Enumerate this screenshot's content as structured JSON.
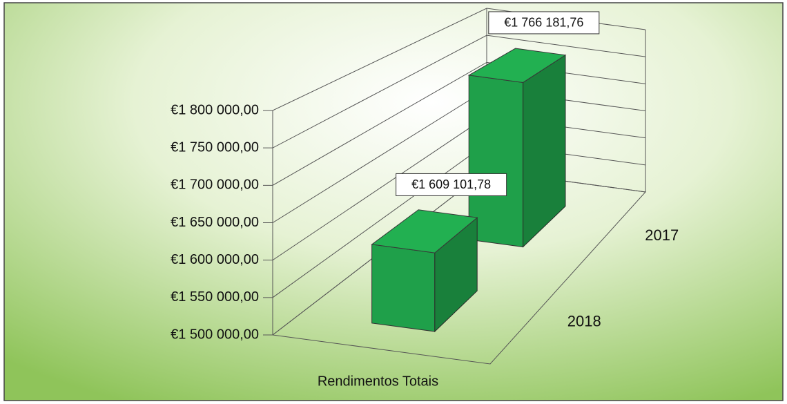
{
  "chart_data": {
    "type": "bar3d",
    "categories": [
      "Rendimentos Totais"
    ],
    "series": [
      {
        "name": "2018",
        "color": "#1fa04a",
        "values": [
          1609101.78
        ],
        "value_labels": [
          "€1 609 101,78"
        ]
      },
      {
        "name": "2017",
        "color": "#1fa04a",
        "values": [
          1766181.76
        ],
        "value_labels": [
          "€1 766 181,76"
        ]
      }
    ],
    "ylim": [
      1500000,
      1800000
    ],
    "yticks": [
      {
        "value": 1500000,
        "label": "€1 500 000,00"
      },
      {
        "value": 1550000,
        "label": "€1 550 000,00"
      },
      {
        "value": 1600000,
        "label": "€1 600 000,00"
      },
      {
        "value": 1650000,
        "label": "€1 650 000,00"
      },
      {
        "value": 1700000,
        "label": "€1 700 000,00"
      },
      {
        "value": 1750000,
        "label": "€1 750 000,00"
      },
      {
        "value": 1800000,
        "label": "€1 800 000,00"
      }
    ],
    "grid": true
  }
}
